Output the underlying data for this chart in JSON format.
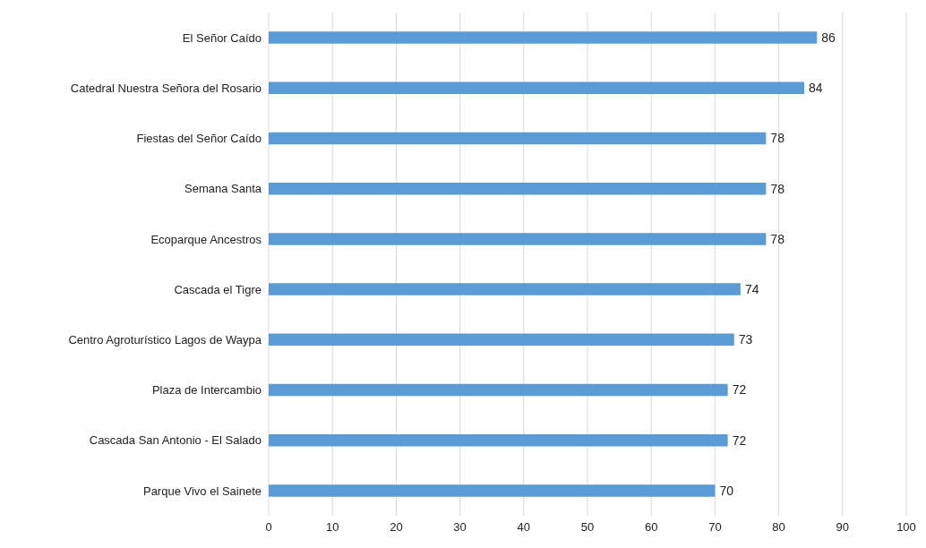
{
  "chart_data": {
    "type": "bar",
    "orientation": "horizontal",
    "categories": [
      "El Señor Caído",
      "Catedral Nuestra Señora del Rosario",
      "Fiestas del Señor Caído",
      "Semana Santa",
      "Ecoparque Ancestros",
      "Cascada el Tigre",
      "Centro Agroturístico Lagos de Waypa",
      "Plaza de Intercambio",
      "Cascada San Antonio - El Salado",
      "Parque Vivo el Sainete"
    ],
    "values": [
      86,
      84,
      78,
      78,
      78,
      74,
      73,
      72,
      72,
      70
    ],
    "color": "#5b9bd5",
    "xlim": [
      0,
      100
    ],
    "xticks": [
      0,
      10,
      20,
      30,
      40,
      50,
      60,
      70,
      80,
      90,
      100
    ],
    "grid": "x",
    "data_labels": true
  }
}
